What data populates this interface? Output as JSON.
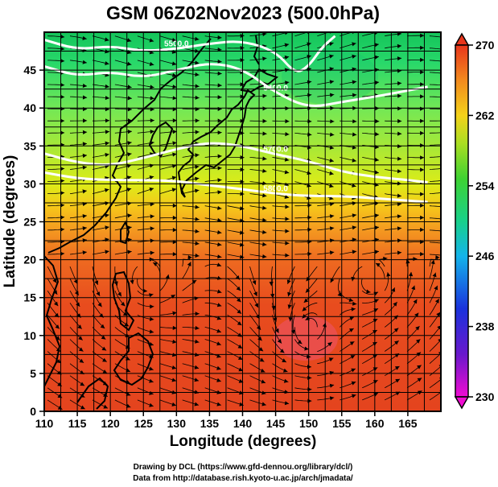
{
  "title": "GSM 06Z02Nov2023 (500.0hPa)",
  "chart_data": {
    "type": "heatmap",
    "title": "GSM 06Z02Nov2023 (500.0hPa)",
    "xlabel": "Longitude (degrees)",
    "ylabel": "Latitude  (degrees)",
    "xlim": [
      110,
      170
    ],
    "ylim": [
      0,
      50
    ],
    "x_ticks": [
      "110",
      "115",
      "120",
      "125",
      "130",
      "135",
      "140",
      "145",
      "150",
      "155",
      "160",
      "165"
    ],
    "y_ticks": [
      "0",
      "5",
      "10",
      "15",
      "20",
      "25",
      "30",
      "35",
      "40",
      "45"
    ],
    "grid": true,
    "colorbar": {
      "range": [
        230,
        270
      ],
      "ticks": [
        "230",
        "238",
        "246",
        "254",
        "262",
        "270"
      ]
    },
    "contours": [
      {
        "label": "5400.0",
        "points": [
          [
            110,
            45.5
          ],
          [
            115,
            44.2
          ],
          [
            120,
            44.8
          ],
          [
            125,
            44.0
          ],
          [
            130,
            45.0
          ],
          [
            135,
            46.0
          ],
          [
            140,
            45.2
          ],
          [
            145,
            42.0
          ],
          [
            150,
            40.0
          ],
          [
            155,
            40.8
          ],
          [
            160,
            41.5
          ],
          [
            165,
            42.3
          ],
          [
            168,
            42.8
          ]
        ]
      },
      {
        "label": "5500.0",
        "points": [
          [
            110,
            49.0
          ],
          [
            115,
            47.7
          ],
          [
            120,
            48.2
          ],
          [
            125,
            47.5
          ],
          [
            130,
            47.8
          ],
          [
            135,
            48.5
          ],
          [
            140,
            48.9
          ],
          [
            145,
            47.5
          ],
          [
            148,
            44.5
          ],
          [
            150,
            45.5
          ],
          [
            152,
            48.0
          ],
          [
            154,
            49.5
          ]
        ]
      },
      {
        "label": "5700.0",
        "points": [
          [
            110,
            34.0
          ],
          [
            115,
            32.8
          ],
          [
            120,
            32.4
          ],
          [
            125,
            33.4
          ],
          [
            130,
            34.6
          ],
          [
            135,
            35.5
          ],
          [
            140,
            35.0
          ],
          [
            145,
            33.9
          ],
          [
            150,
            33.0
          ],
          [
            155,
            31.6
          ],
          [
            160,
            30.9
          ],
          [
            165,
            30.5
          ],
          [
            168,
            30.2
          ]
        ]
      },
      {
        "label": "5800.0",
        "points": [
          [
            110,
            31.5
          ],
          [
            115,
            30.7
          ],
          [
            120,
            30.5
          ],
          [
            125,
            30.5
          ],
          [
            130,
            30.4
          ],
          [
            135,
            29.8
          ],
          [
            140,
            29.3
          ],
          [
            145,
            28.7
          ],
          [
            150,
            28.4
          ],
          [
            155,
            28.4
          ],
          [
            160,
            28.1
          ],
          [
            165,
            27.8
          ],
          [
            168,
            27.6
          ]
        ]
      }
    ],
    "credits": [
      "Drawing by DCL (https://www.gfd-dennou.org/library/dcl/)",
      "Data from http://database.rish.kyoto-u.ac.jp/arch/jmadata/"
    ]
  }
}
